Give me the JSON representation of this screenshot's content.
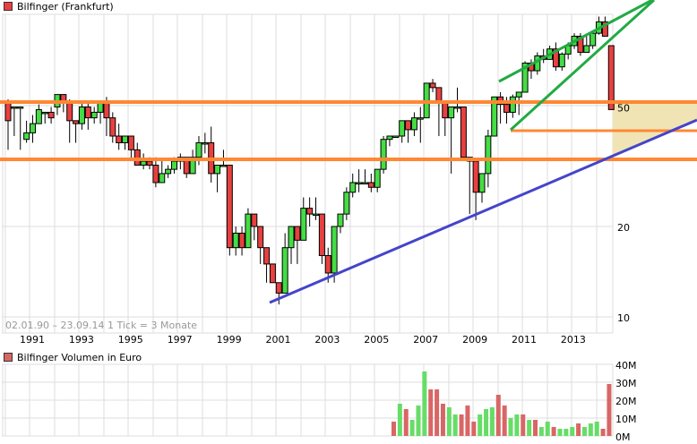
{
  "price_legend": {
    "label": "Bilfinger (Frankfurt)",
    "color": "#e84040"
  },
  "volume_legend": {
    "label": "Bilfinger Volumen in Euro",
    "color": "#d96666"
  },
  "range_info": "02.01.90 – 23.09.14   1 Tick = 3 Monate",
  "colors": {
    "up": "#44dd44",
    "down": "#e84040",
    "vol_up": "#66dd66",
    "vol_down": "#d96666",
    "resistance": "#ff8833",
    "trend_support": "#4444cc",
    "channel": "#22aa44",
    "fill_zone": "#f0e4b4",
    "grid": "#dddddd"
  },
  "chart_data": [
    {
      "type": "candlestick",
      "title": "Bilfinger (Frankfurt)",
      "x_ticks": [
        "1991",
        "1993",
        "1995",
        "1997",
        "1999",
        "2001",
        "2003",
        "2005",
        "2007",
        "2009",
        "2011",
        "2013"
      ],
      "y_scale": "log",
      "y_ticks": [
        10,
        20,
        50
      ],
      "y_tick_labels": [
        "10",
        "20",
        "50"
      ],
      "period": "quarterly",
      "range": "02.01.90 – 23.09.14",
      "ohlc_pixel_note": "values in EUR, approximated",
      "candles": [
        [
          52,
          45,
          36,
          53
        ],
        [
          50,
          50,
          50,
          40
        ],
        [
          50,
          50,
          36,
          50
        ],
        [
          39,
          41,
          38,
          45
        ],
        [
          41,
          44,
          38,
          47
        ],
        [
          44,
          49,
          44,
          51
        ],
        [
          48,
          48,
          48,
          44
        ],
        [
          48,
          46,
          44,
          50
        ],
        [
          50,
          55,
          47,
          55
        ],
        [
          55,
          52,
          48,
          55
        ],
        [
          52,
          45,
          38,
          53
        ],
        [
          45,
          44,
          38,
          45
        ],
        [
          44,
          50,
          42,
          52
        ],
        [
          50,
          46,
          42,
          52
        ],
        [
          46,
          48,
          44,
          50
        ],
        [
          48,
          52,
          44,
          52
        ],
        [
          52,
          46,
          40,
          54
        ],
        [
          46,
          40,
          38,
          48
        ],
        [
          40,
          38,
          36,
          44
        ],
        [
          38,
          40,
          36,
          40
        ],
        [
          40,
          36,
          33,
          40
        ],
        [
          36,
          32,
          32,
          38
        ],
        [
          32,
          33,
          31,
          35
        ],
        [
          33,
          32,
          31,
          34
        ],
        [
          32,
          28,
          27,
          34
        ],
        [
          28,
          30,
          28,
          33
        ],
        [
          30,
          31,
          29,
          32
        ],
        [
          31,
          33,
          30,
          34
        ],
        [
          33,
          34,
          31,
          35
        ],
        [
          34,
          30,
          29,
          34
        ],
        [
          30,
          34,
          30,
          36
        ],
        [
          34,
          38,
          32,
          40
        ],
        [
          38,
          38,
          35,
          41
        ],
        [
          38,
          30,
          28,
          43
        ],
        [
          30,
          32,
          26,
          32
        ],
        [
          32,
          32,
          32,
          36
        ],
        [
          32,
          17,
          16,
          32
        ],
        [
          17,
          19,
          16,
          20
        ],
        [
          19,
          17,
          16,
          20
        ],
        [
          17,
          22,
          17,
          23
        ],
        [
          22,
          20,
          18,
          22
        ],
        [
          20,
          17,
          15,
          20
        ],
        [
          17,
          15,
          13,
          17
        ],
        [
          15,
          13,
          13,
          15
        ],
        [
          13,
          12,
          11,
          13
        ],
        [
          12,
          17,
          12,
          19
        ],
        [
          17,
          20,
          15,
          20
        ],
        [
          20,
          18,
          15,
          20
        ],
        [
          18,
          23,
          18,
          25
        ],
        [
          23,
          22,
          20,
          25
        ],
        [
          22,
          22,
          21,
          25
        ],
        [
          22,
          16,
          15,
          22
        ],
        [
          16,
          14,
          13,
          17
        ],
        [
          14,
          20,
          13,
          20
        ],
        [
          20,
          22,
          19,
          22
        ],
        [
          22,
          26,
          21,
          27
        ],
        [
          26,
          28,
          25,
          30
        ],
        [
          28,
          28,
          26,
          31
        ],
        [
          28,
          28,
          28,
          31
        ],
        [
          28,
          27,
          26,
          30
        ],
        [
          27,
          31,
          26,
          31
        ],
        [
          31,
          39,
          30,
          40
        ],
        [
          39,
          40,
          37,
          40
        ],
        [
          40,
          40,
          40,
          40
        ],
        [
          40,
          45,
          38,
          45
        ],
        [
          45,
          42,
          38,
          45
        ],
        [
          42,
          46,
          40,
          48
        ],
        [
          46,
          46,
          38,
          50
        ],
        [
          46,
          60,
          46,
          60
        ],
        [
          60,
          58,
          56,
          62
        ],
        [
          58,
          52,
          40,
          58
        ],
        [
          52,
          46,
          40,
          52
        ],
        [
          46,
          50,
          30,
          50
        ],
        [
          50,
          50,
          48,
          58
        ],
        [
          50,
          34,
          33,
          50
        ],
        [
          34,
          33,
          22,
          34
        ],
        [
          33,
          26,
          21,
          33
        ],
        [
          26,
          30,
          24,
          30
        ],
        [
          30,
          40,
          27,
          42
        ],
        [
          40,
          54,
          40,
          54
        ],
        [
          54,
          51,
          44,
          56
        ],
        [
          51,
          48,
          44,
          54
        ],
        [
          48,
          54,
          46,
          55
        ],
        [
          54,
          56,
          47,
          56
        ],
        [
          56,
          70,
          56,
          71
        ],
        [
          70,
          66,
          62,
          72
        ],
        [
          66,
          74,
          64,
          76
        ],
        [
          74,
          72,
          70,
          78
        ],
        [
          72,
          78,
          72,
          80
        ],
        [
          78,
          68,
          66,
          82
        ],
        [
          68,
          75,
          66,
          76
        ],
        [
          75,
          80,
          72,
          82
        ],
        [
          80,
          86,
          78,
          88
        ],
        [
          86,
          76,
          74,
          88
        ],
        [
          76,
          80,
          76,
          86
        ],
        [
          80,
          88,
          78,
          88
        ],
        [
          88,
          96,
          87,
          100
        ],
        [
          96,
          86,
          86,
          100
        ],
        [
          80,
          49,
          49,
          80
        ]
      ],
      "horizontal_lines": [
        {
          "value": 51,
          "label": "resistance"
        },
        {
          "value": 42,
          "label": "support"
        },
        {
          "value": 36,
          "label": "support"
        }
      ],
      "trendlines": [
        "support trendline from 2000 low (~11) rising to ~45 at right edge",
        "rising wedge / channel 2009–2014"
      ]
    },
    {
      "type": "bar",
      "title": "Bilfinger Volumen in Euro",
      "y_ticks": [
        "0M",
        "10M",
        "20M",
        "30M",
        "40M"
      ],
      "ylim": [
        0,
        40
      ],
      "values": [
        8,
        18,
        15,
        9,
        17,
        36,
        26,
        26,
        18,
        16,
        12,
        12,
        17,
        8,
        12,
        15,
        16,
        23,
        17,
        10,
        12,
        12,
        9,
        9,
        5,
        8,
        5,
        4,
        4,
        5,
        7,
        5,
        7,
        8,
        4,
        29
      ],
      "directions": [
        "d",
        "u",
        "d",
        "u",
        "u",
        "u",
        "d",
        "d",
        "d",
        "u",
        "u",
        "d",
        "d",
        "d",
        "u",
        "u",
        "u",
        "d",
        "d",
        "u",
        "u",
        "d",
        "u",
        "d",
        "u",
        "u",
        "d",
        "u",
        "u",
        "u",
        "d",
        "u",
        "u",
        "u",
        "d",
        "d"
      ]
    }
  ]
}
